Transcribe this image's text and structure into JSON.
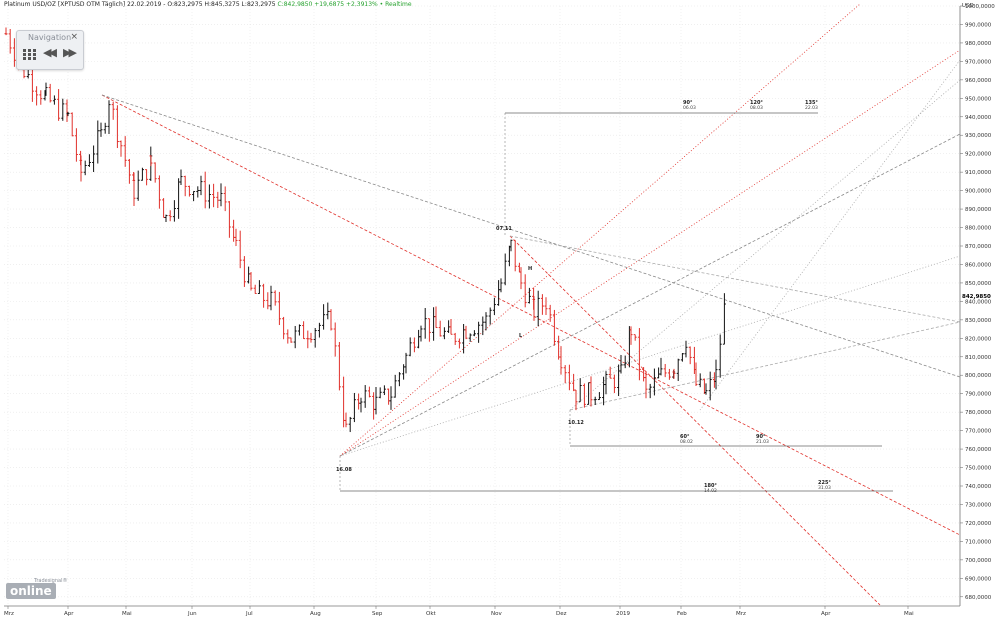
{
  "header": {
    "instrument": "Platinum USD/OZ [XPTUSD OTM Täglich]",
    "quote": "22.02.2019 - O:823,2975 H:845,3275 L:823,2975",
    "change": "C:842,9850 +19,6875 +2,3913% • Realtime"
  },
  "navigation": {
    "title": "Navigation",
    "close": "×",
    "back": "◀◀",
    "forward": "▶▶"
  },
  "chart_data": {
    "type": "ohlc",
    "currency_label": "USD",
    "ylim": [
      675000,
      1000000
    ],
    "y_ticks": [
      "680,0000",
      "690,0000",
      "700,0000",
      "710,0000",
      "720,0000",
      "730,0000",
      "740,0000",
      "750,0000",
      "760,0000",
      "770,0000",
      "780,0000",
      "790,0000",
      "800,0000",
      "810,0000",
      "820,0000",
      "830,0000",
      "840,0000",
      "850,0000",
      "860,0000",
      "870,0000",
      "880,0000",
      "890,0000",
      "900,0000",
      "910,0000",
      "920,0000",
      "930,0000",
      "940,0000",
      "950,0000",
      "960,0000",
      "970,0000",
      "980,0000",
      "990,0000",
      "1000,0000"
    ],
    "x_ticks": [
      "Mrz",
      "Apr",
      "Mai",
      "Jun",
      "Jul",
      "Aug",
      "Sep",
      "Okt",
      "Nov",
      "Dez",
      "2019",
      "Feb",
      "Mrz",
      "Apr",
      "Mai"
    ],
    "last_price_label": "842,9850",
    "close_path": [
      [
        0,
        985000
      ],
      [
        18,
        965000
      ],
      [
        40,
        950000
      ],
      [
        62,
        940000
      ],
      [
        75,
        910000
      ],
      [
        95,
        930000
      ],
      [
        103,
        950000
      ],
      [
        115,
        925000
      ],
      [
        128,
        900000
      ],
      [
        145,
        915000
      ],
      [
        160,
        885000
      ],
      [
        175,
        905000
      ],
      [
        195,
        900000
      ],
      [
        215,
        895000
      ],
      [
        230,
        870000
      ],
      [
        245,
        845000
      ],
      [
        265,
        840000
      ],
      [
        285,
        820000
      ],
      [
        305,
        825000
      ],
      [
        325,
        830000
      ],
      [
        340,
        770000
      ],
      [
        355,
        790000
      ],
      [
        370,
        785000
      ],
      [
        385,
        790000
      ],
      [
        400,
        810000
      ],
      [
        415,
        830000
      ],
      [
        430,
        825000
      ],
      [
        445,
        820000
      ],
      [
        460,
        825000
      ],
      [
        480,
        830000
      ],
      [
        495,
        850000
      ],
      [
        505,
        870000
      ],
      [
        515,
        850000
      ],
      [
        528,
        835000
      ],
      [
        540,
        840000
      ],
      [
        555,
        810000
      ],
      [
        570,
        790000
      ],
      [
        585,
        790000
      ],
      [
        600,
        795000
      ],
      [
        615,
        800000
      ],
      [
        625,
        825000
      ],
      [
        640,
        790000
      ],
      [
        655,
        800000
      ],
      [
        668,
        805000
      ],
      [
        680,
        820000
      ],
      [
        690,
        795000
      ],
      [
        700,
        790000
      ],
      [
        710,
        800000
      ],
      [
        720,
        842985
      ]
    ],
    "annotations": [
      {
        "text": "07.11"
      },
      {
        "text": "16.08"
      },
      {
        "text": "10.12"
      },
      {
        "text": "H"
      },
      {
        "text": "L"
      },
      {
        "text": "90°",
        "sub": "06.03"
      },
      {
        "text": "120°",
        "sub": "08.03"
      },
      {
        "text": "135°",
        "sub": "22.03"
      },
      {
        "text": "60°",
        "sub": "08.02"
      },
      {
        "text": "90°",
        "sub": "21.03"
      },
      {
        "text": "180°",
        "sub": "14.02"
      },
      {
        "text": "225°",
        "sub": "31.03"
      }
    ],
    "colors": {
      "up": "#111111",
      "down": "#e0302a",
      "trend_red": "#e0302a",
      "trend_grey": "#888888",
      "pos": "#22a02a"
    }
  },
  "logo": {
    "text": "online",
    "small": "Tradesignal®"
  }
}
